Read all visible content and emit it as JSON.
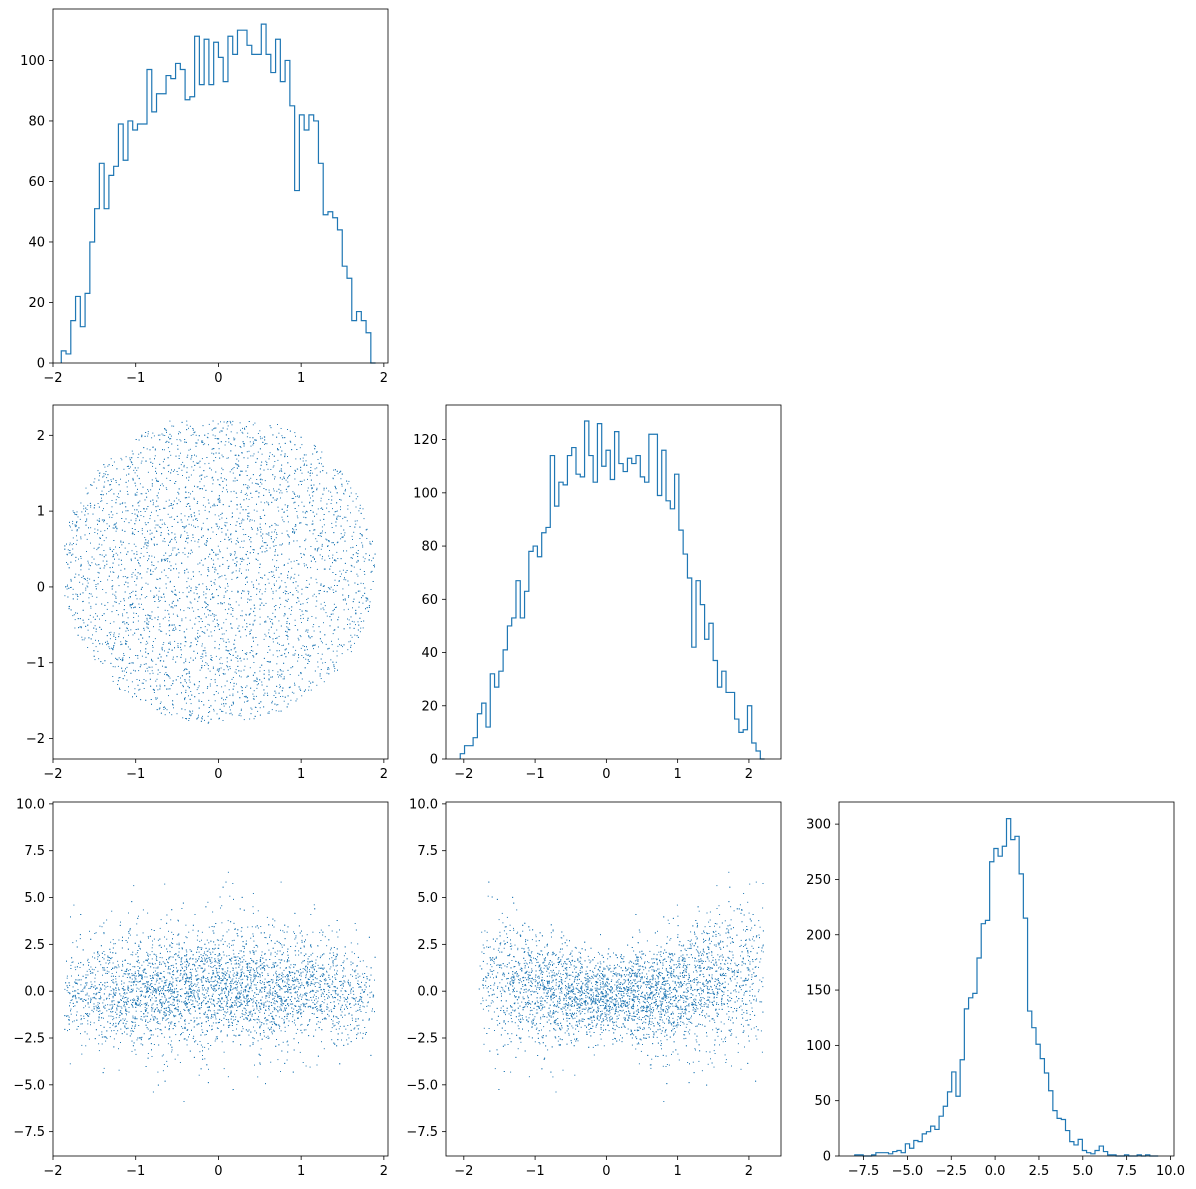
{
  "chart_data": [
    {
      "id": "hist-x",
      "type": "histogram",
      "row": 0,
      "col": 0,
      "title": "",
      "xlabel": "",
      "ylabel": "",
      "xlim": [
        -2.0,
        2.05
      ],
      "ylim": [
        0,
        117
      ],
      "xticks": [
        {
          "v": -2,
          "label": "−2"
        },
        {
          "v": -1,
          "label": "−1"
        },
        {
          "v": 0,
          "label": "0"
        },
        {
          "v": 1,
          "label": "1"
        },
        {
          "v": 2,
          "label": "2"
        }
      ],
      "yticks": [
        {
          "v": 0,
          "label": "0"
        },
        {
          "v": 20,
          "label": "20"
        },
        {
          "v": 40,
          "label": "40"
        },
        {
          "v": 60,
          "label": "60"
        },
        {
          "v": 80,
          "label": "80"
        },
        {
          "v": 100,
          "label": "100"
        }
      ],
      "bin_start": -1.9,
      "bin_end": 1.9,
      "counts": [
        4,
        3,
        14,
        22,
        12,
        23,
        40,
        51,
        66,
        51,
        62,
        65,
        79,
        67,
        80,
        77,
        79,
        79,
        97,
        83,
        89,
        89,
        95,
        94,
        99,
        97,
        87,
        88,
        108,
        92,
        107,
        92,
        106,
        101,
        93,
        108,
        102,
        110,
        110,
        105,
        102,
        102,
        112,
        102,
        96,
        107,
        93,
        100,
        85,
        57,
        82,
        77,
        82,
        80,
        66,
        49,
        50,
        48,
        44,
        32,
        28,
        14,
        17,
        14,
        10,
        0
      ]
    },
    {
      "id": "scatter-x-y",
      "type": "scatter",
      "row": 1,
      "col": 0,
      "title": "",
      "xlabel": "",
      "ylabel": "",
      "xlim": [
        -2.0,
        2.05
      ],
      "ylim": [
        -2.27,
        2.4
      ],
      "xticks": [
        {
          "v": -2,
          "label": "−2"
        },
        {
          "v": -1,
          "label": "−1"
        },
        {
          "v": 0,
          "label": "0"
        },
        {
          "v": 1,
          "label": "1"
        },
        {
          "v": 2,
          "label": "2"
        }
      ],
      "yticks": [
        {
          "v": -2,
          "label": "−2"
        },
        {
          "v": -1,
          "label": "−1"
        },
        {
          "v": 0,
          "label": "0"
        },
        {
          "v": 1,
          "label": "1"
        },
        {
          "v": 2,
          "label": "2"
        }
      ],
      "x_range": [
        -1.9,
        1.9
      ],
      "y_range": [
        -2.05,
        2.2
      ],
      "n_points": 5000,
      "pattern": "uniform disc-like cloud"
    },
    {
      "id": "hist-y",
      "type": "histogram",
      "row": 1,
      "col": 1,
      "title": "",
      "xlabel": "",
      "ylabel": "",
      "xlim": [
        -2.25,
        2.45
      ],
      "ylim": [
        0,
        133
      ],
      "xticks": [
        {
          "v": -2,
          "label": "−2"
        },
        {
          "v": -1,
          "label": "−1"
        },
        {
          "v": 0,
          "label": "0"
        },
        {
          "v": 1,
          "label": "1"
        },
        {
          "v": 2,
          "label": "2"
        }
      ],
      "yticks": [
        {
          "v": 0,
          "label": "0"
        },
        {
          "v": 20,
          "label": "20"
        },
        {
          "v": 40,
          "label": "40"
        },
        {
          "v": 60,
          "label": "60"
        },
        {
          "v": 80,
          "label": "80"
        },
        {
          "v": 100,
          "label": "100"
        },
        {
          "v": 120,
          "label": "120"
        }
      ],
      "bin_start": -2.05,
      "bin_end": 2.22,
      "counts": [
        2,
        5,
        5,
        8,
        17,
        21,
        12,
        32,
        27,
        33,
        41,
        50,
        53,
        67,
        53,
        63,
        78,
        80,
        76,
        85,
        87,
        114,
        95,
        104,
        103,
        114,
        117,
        107,
        106,
        127,
        114,
        104,
        126,
        110,
        116,
        105,
        123,
        111,
        108,
        113,
        111,
        114,
        106,
        104,
        122,
        122,
        99,
        116,
        97,
        94,
        107,
        86,
        77,
        68,
        42,
        67,
        58,
        45,
        51,
        37,
        27,
        33,
        25,
        25,
        15,
        10,
        11,
        20,
        6,
        3,
        0
      ]
    },
    {
      "id": "scatter-x-z",
      "type": "scatter",
      "row": 2,
      "col": 0,
      "title": "",
      "xlabel": "",
      "ylabel": "",
      "xlim": [
        -2.0,
        2.05
      ],
      "ylim": [
        -8.8,
        10.1
      ],
      "xticks": [
        {
          "v": -2,
          "label": "−2"
        },
        {
          "v": -1,
          "label": "−1"
        },
        {
          "v": 0,
          "label": "0"
        },
        {
          "v": 1,
          "label": "1"
        },
        {
          "v": 2,
          "label": "2"
        }
      ],
      "yticks": [
        {
          "v": -7.5,
          "label": "−7.5"
        },
        {
          "v": -5,
          "label": "−5.0"
        },
        {
          "v": -2.5,
          "label": "−2.5"
        },
        {
          "v": 0,
          "label": "0.0"
        },
        {
          "v": 2.5,
          "label": "2.5"
        },
        {
          "v": 5,
          "label": "5.0"
        },
        {
          "v": 7.5,
          "label": "7.5"
        },
        {
          "v": 10,
          "label": "10.0"
        }
      ],
      "x_range": [
        -1.9,
        1.9
      ],
      "y_range": [
        -7.9,
        9.3
      ],
      "n_points": 5000,
      "pattern": "horizontal band centred near 0"
    },
    {
      "id": "scatter-y-z",
      "type": "scatter",
      "row": 2,
      "col": 1,
      "title": "",
      "xlabel": "",
      "ylabel": "",
      "xlim": [
        -2.25,
        2.45
      ],
      "ylim": [
        -8.8,
        10.1
      ],
      "xticks": [
        {
          "v": -2,
          "label": "−2"
        },
        {
          "v": -1,
          "label": "−1"
        },
        {
          "v": 0,
          "label": "0"
        },
        {
          "v": 1,
          "label": "1"
        },
        {
          "v": 2,
          "label": "2"
        }
      ],
      "yticks": [
        {
          "v": -7.5,
          "label": "−7.5"
        },
        {
          "v": -5,
          "label": "−5.0"
        },
        {
          "v": -2.5,
          "label": "−2.5"
        },
        {
          "v": 0,
          "label": "0.0"
        },
        {
          "v": 2.5,
          "label": "2.5"
        },
        {
          "v": 5,
          "label": "5.0"
        },
        {
          "v": 7.5,
          "label": "7.5"
        },
        {
          "v": 10,
          "label": "10.0"
        }
      ],
      "x_range": [
        -2.05,
        2.22
      ],
      "y_range": [
        -7.9,
        9.3
      ],
      "n_points": 5000,
      "pattern": "bowl shaped cloud, spread grows with |y|"
    },
    {
      "id": "hist-z",
      "type": "histogram",
      "row": 2,
      "col": 2,
      "title": "",
      "xlabel": "",
      "ylabel": "",
      "xlim": [
        -8.9,
        10.2
      ],
      "ylim": [
        0,
        320
      ],
      "xticks": [
        {
          "v": -7.5,
          "label": "−7.5"
        },
        {
          "v": -5,
          "label": "−5.0"
        },
        {
          "v": -2.5,
          "label": "−2.5"
        },
        {
          "v": 0,
          "label": "0.0"
        },
        {
          "v": 2.5,
          "label": "2.5"
        },
        {
          "v": 5,
          "label": "5.0"
        },
        {
          "v": 7.5,
          "label": "7.5"
        },
        {
          "v": 10,
          "label": "10.0"
        }
      ],
      "yticks": [
        {
          "v": 0,
          "label": "0"
        },
        {
          "v": 50,
          "label": "50"
        },
        {
          "v": 100,
          "label": "100"
        },
        {
          "v": 150,
          "label": "150"
        },
        {
          "v": 200,
          "label": "200"
        },
        {
          "v": 250,
          "label": "250"
        },
        {
          "v": 300,
          "label": "300"
        }
      ],
      "bin_start": -8.0,
      "bin_end": 9.3,
      "counts": [
        1,
        1,
        0,
        0,
        1,
        3,
        3,
        3,
        2,
        4,
        5,
        3,
        11,
        7,
        14,
        13,
        20,
        22,
        27,
        24,
        36,
        45,
        58,
        76,
        54,
        87,
        133,
        143,
        147,
        179,
        210,
        213,
        266,
        278,
        271,
        280,
        305,
        286,
        289,
        255,
        215,
        131,
        116,
        101,
        88,
        75,
        59,
        41,
        34,
        33,
        23,
        13,
        10,
        15,
        5,
        3,
        2,
        5,
        9,
        4,
        1,
        1,
        0,
        0,
        1,
        0,
        0,
        1,
        0,
        1,
        0,
        0
      ]
    }
  ],
  "style": {
    "line_color": "#1f77b4",
    "point_color": "#1f77b4",
    "axis_color": "#000000",
    "background": "#ffffff"
  }
}
